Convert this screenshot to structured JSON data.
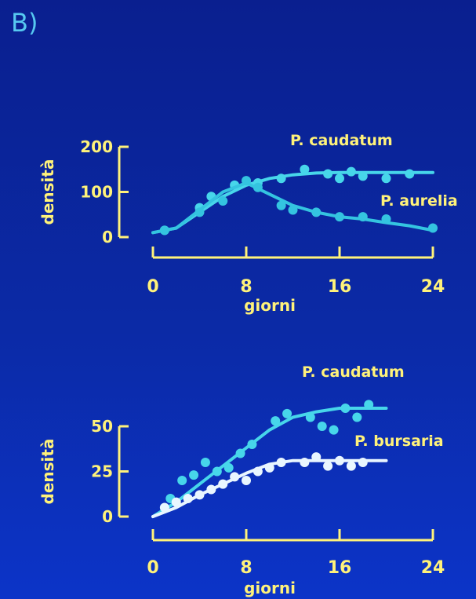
{
  "panel_label": "B)",
  "colors": {
    "axis": "#fff27a",
    "series_cyan": "#33d3e6",
    "series_white": "#e9f6ff"
  },
  "chart_data": [
    {
      "type": "line",
      "xlabel": "giorni",
      "ylabel": "densità",
      "xlim": [
        0,
        24
      ],
      "ylim": [
        0,
        200
      ],
      "xticks": [
        0,
        8,
        16,
        24
      ],
      "yticks": [
        0,
        100,
        200
      ],
      "series": [
        {
          "name": "P. caudatum",
          "color": "#47d6ea",
          "points": [
            [
              1,
              15
            ],
            [
              4,
              65
            ],
            [
              5,
              90
            ],
            [
              7,
              115
            ],
            [
              9,
              120
            ],
            [
              11,
              130
            ],
            [
              13,
              150
            ],
            [
              15,
              140
            ],
            [
              16,
              130
            ],
            [
              17,
              145
            ],
            [
              18,
              135
            ],
            [
              20,
              130
            ],
            [
              22,
              140
            ]
          ],
          "curve": [
            [
              0,
              10
            ],
            [
              2,
              20
            ],
            [
              4,
              55
            ],
            [
              6,
              90
            ],
            [
              8,
              115
            ],
            [
              10,
              130
            ],
            [
              12,
              138
            ],
            [
              14,
              142
            ],
            [
              16,
              143
            ],
            [
              18,
              143
            ],
            [
              20,
              143
            ],
            [
              22,
              143
            ],
            [
              24,
              143
            ]
          ]
        },
        {
          "name": "P. aurelia",
          "color": "#34c4e0",
          "points": [
            [
              1,
              15
            ],
            [
              4,
              55
            ],
            [
              6,
              80
            ],
            [
              8,
              125
            ],
            [
              9,
              110
            ],
            [
              11,
              70
            ],
            [
              12,
              60
            ],
            [
              14,
              55
            ],
            [
              16,
              45
            ],
            [
              18,
              45
            ],
            [
              20,
              40
            ],
            [
              24,
              20
            ]
          ],
          "curve": [
            [
              0,
              10
            ],
            [
              2,
              20
            ],
            [
              4,
              60
            ],
            [
              6,
              100
            ],
            [
              8,
              120
            ],
            [
              10,
              95
            ],
            [
              12,
              70
            ],
            [
              14,
              55
            ],
            [
              16,
              45
            ],
            [
              18,
              40
            ],
            [
              20,
              32
            ],
            [
              22,
              25
            ],
            [
              24,
              15
            ]
          ]
        }
      ]
    },
    {
      "type": "line",
      "xlabel": "giorni",
      "ylabel": "densità",
      "xlim": [
        0,
        24
      ],
      "ylim": [
        0,
        50
      ],
      "xticks": [
        0,
        8,
        16,
        24
      ],
      "yticks": [
        0,
        25,
        50
      ],
      "series": [
        {
          "name": "P. caudatum",
          "color": "#47d6ea",
          "points": [
            [
              1.5,
              10
            ],
            [
              2.5,
              20
            ],
            [
              3.5,
              23
            ],
            [
              4.5,
              30
            ],
            [
              5.5,
              25
            ],
            [
              6.5,
              27
            ],
            [
              7.5,
              35
            ],
            [
              8.5,
              40
            ],
            [
              10.5,
              53
            ],
            [
              11.5,
              57
            ],
            [
              13.5,
              55
            ],
            [
              14.5,
              50
            ],
            [
              15.5,
              48
            ],
            [
              16.5,
              60
            ],
            [
              17.5,
              55
            ],
            [
              18.5,
              62
            ]
          ],
          "curve": [
            [
              0,
              0
            ],
            [
              2,
              8
            ],
            [
              4,
              18
            ],
            [
              6,
              28
            ],
            [
              8,
              38
            ],
            [
              10,
              48
            ],
            [
              12,
              55
            ],
            [
              14,
              58
            ],
            [
              16,
              60
            ],
            [
              18,
              60
            ],
            [
              20,
              60
            ]
          ]
        },
        {
          "name": "P. bursaria",
          "color": "#e9f6ff",
          "points": [
            [
              1,
              5
            ],
            [
              2,
              8
            ],
            [
              3,
              10
            ],
            [
              4,
              12
            ],
            [
              5,
              15
            ],
            [
              6,
              18
            ],
            [
              7,
              22
            ],
            [
              8,
              20
            ],
            [
              9,
              25
            ],
            [
              10,
              27
            ],
            [
              11,
              30
            ],
            [
              13,
              30
            ],
            [
              14,
              33
            ],
            [
              15,
              28
            ],
            [
              16,
              31
            ],
            [
              17,
              28
            ],
            [
              18,
              30
            ]
          ],
          "curve": [
            [
              0,
              0
            ],
            [
              2,
              5
            ],
            [
              4,
              12
            ],
            [
              6,
              18
            ],
            [
              8,
              24
            ],
            [
              10,
              29
            ],
            [
              12,
              31
            ],
            [
              14,
              31
            ],
            [
              16,
              31
            ],
            [
              18,
              31
            ],
            [
              20,
              31
            ]
          ]
        }
      ]
    }
  ]
}
